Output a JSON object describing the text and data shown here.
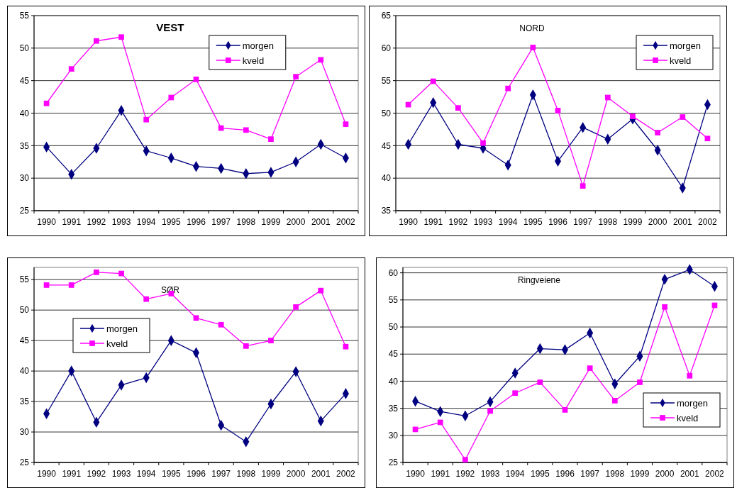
{
  "chart_data": [
    {
      "type": "line",
      "title": "VEST",
      "categories": [
        "1990",
        "1991",
        "1992",
        "1993",
        "1994",
        "1995",
        "1996",
        "1997",
        "1998",
        "1999",
        "2000",
        "2001",
        "2002"
      ],
      "ylim": [
        25,
        55
      ],
      "yticks": [
        25,
        30,
        35,
        40,
        45,
        50,
        55
      ],
      "grid": "y",
      "legend": "top right",
      "series": [
        {
          "name": "morgen",
          "color": "#000080",
          "marker": "diamond",
          "values": [
            34.8,
            30.6,
            34.6,
            40.4,
            34.2,
            33.1,
            31.8,
            31.5,
            30.7,
            30.9,
            32.5,
            35.2,
            33.1
          ]
        },
        {
          "name": "kveld",
          "color": "#ff00ff",
          "marker": "square",
          "values": [
            41.5,
            46.8,
            51.1,
            51.7,
            39.0,
            42.4,
            45.2,
            37.7,
            37.4,
            36.0,
            45.6,
            48.2,
            38.3
          ]
        }
      ]
    },
    {
      "type": "line",
      "title": "NORD",
      "categories": [
        "1990",
        "1991",
        "1992",
        "1993",
        "1994",
        "1995",
        "1996",
        "1997",
        "1998",
        "1999",
        "2000",
        "2001",
        "2002"
      ],
      "ylim": [
        35,
        65
      ],
      "yticks": [
        35,
        40,
        45,
        50,
        55,
        60,
        65
      ],
      "grid": "y",
      "legend": "top right",
      "series": [
        {
          "name": "morgen",
          "color": "#000080",
          "marker": "diamond",
          "values": [
            45.2,
            51.6,
            45.2,
            44.6,
            42.0,
            52.8,
            42.6,
            47.8,
            46.0,
            49.1,
            44.3,
            38.5,
            51.3
          ]
        },
        {
          "name": "kveld",
          "color": "#ff00ff",
          "marker": "square",
          "values": [
            51.3,
            54.9,
            50.8,
            45.4,
            53.8,
            60.1,
            50.4,
            38.8,
            52.4,
            49.5,
            47.0,
            49.4,
            46.1
          ]
        }
      ]
    },
    {
      "type": "line",
      "title": "SØR",
      "categories": [
        "1990",
        "1991",
        "1992",
        "1993",
        "1994",
        "1995",
        "1996",
        "1997",
        "1998",
        "1999",
        "2000",
        "2001",
        "2002"
      ],
      "ylim": [
        25,
        57
      ],
      "yticks": [
        25,
        30,
        35,
        40,
        45,
        50,
        55
      ],
      "grid": "y",
      "legend": "left",
      "series": [
        {
          "name": "morgen",
          "color": "#000080",
          "marker": "diamond",
          "values": [
            33.0,
            40.0,
            31.6,
            37.7,
            38.9,
            45.0,
            43.0,
            31.1,
            28.4,
            34.6,
            39.9,
            31.8,
            36.3
          ]
        },
        {
          "name": "kveld",
          "color": "#ff00ff",
          "marker": "square",
          "values": [
            54.1,
            54.1,
            56.2,
            56.0,
            51.8,
            52.7,
            48.7,
            47.6,
            44.1,
            45.0,
            50.5,
            53.2,
            44.0
          ]
        }
      ]
    },
    {
      "type": "line",
      "title": "Ringveiene",
      "categories": [
        "1990",
        "1991",
        "1992",
        "1993",
        "1994",
        "1995",
        "1996",
        "1997",
        "1998",
        "1999",
        "2000",
        "2001",
        "2002"
      ],
      "ylim": [
        25,
        61
      ],
      "yticks": [
        25,
        30,
        35,
        40,
        45,
        50,
        55,
        60
      ],
      "grid": "y",
      "legend": "bottom right",
      "series": [
        {
          "name": "morgen",
          "color": "#000080",
          "marker": "diamond",
          "values": [
            36.3,
            34.4,
            33.6,
            36.2,
            41.5,
            46.0,
            45.8,
            48.9,
            39.5,
            44.6,
            58.8,
            60.6,
            57.5
          ]
        },
        {
          "name": "kveld",
          "color": "#ff00ff",
          "marker": "square",
          "values": [
            31.1,
            32.4,
            25.5,
            34.5,
            37.8,
            39.8,
            34.7,
            42.4,
            36.4,
            39.8,
            53.7,
            41.0,
            54.0
          ]
        }
      ]
    }
  ]
}
